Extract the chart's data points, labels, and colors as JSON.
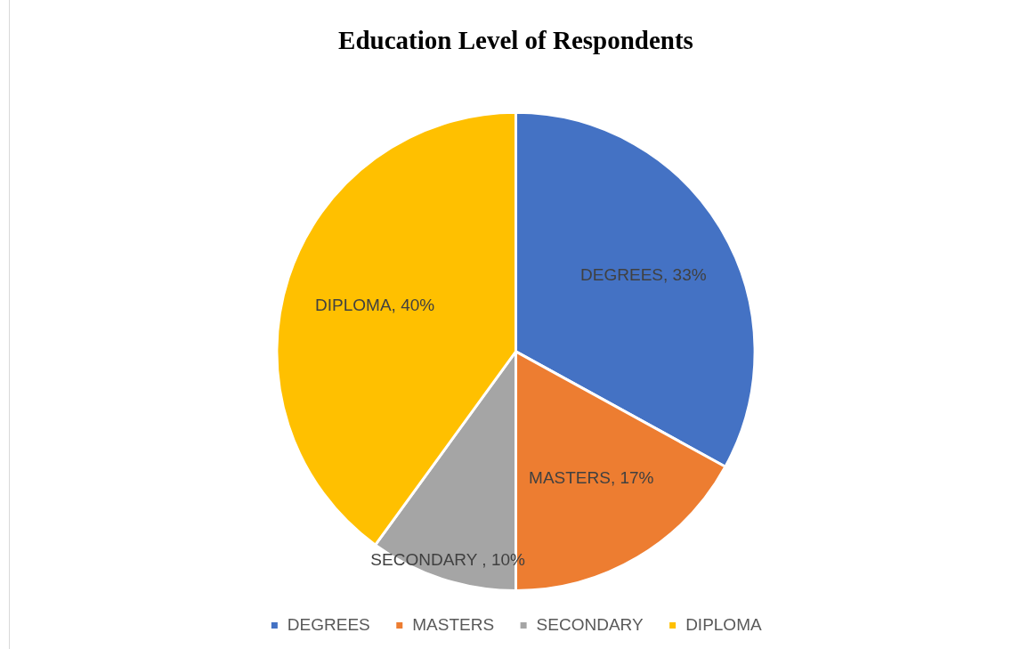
{
  "chart_data": {
    "type": "pie",
    "title": "Education Level of Respondents",
    "categories": [
      "DEGREES",
      "MASTERS",
      "SECONDARY",
      "DIPLOMA"
    ],
    "values": [
      33,
      17,
      10,
      40
    ],
    "colors": [
      "#4472c4",
      "#ed7d31",
      "#a5a5a5",
      "#ffc000"
    ],
    "value_labels": [
      "DEGREES, 33%",
      "MASTERS, 17%",
      "SECONDARY , 10%",
      "DIPLOMA, 40%"
    ],
    "legend": "bottom"
  }
}
